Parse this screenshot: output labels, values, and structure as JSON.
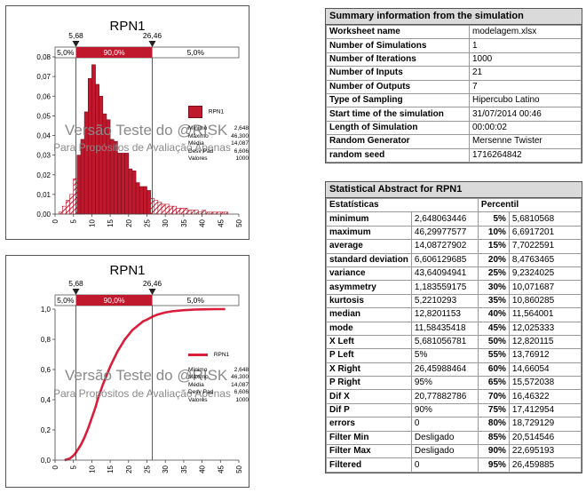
{
  "chart_data": [
    {
      "type": "bar",
      "title": "RPN1",
      "xlim": [
        0,
        50
      ],
      "ylim": [
        0,
        0.08
      ],
      "x_ticks": [
        "0",
        "5",
        "10",
        "15",
        "20",
        "25",
        "30",
        "35",
        "40",
        "45",
        "50"
      ],
      "y_ticks": [
        "0,00",
        "0,01",
        "0,02",
        "0,03",
        "0,04",
        "0,05",
        "0,06",
        "0,07",
        "0,08"
      ],
      "bin_width": 1.0,
      "bin_start": 1.0,
      "values": [
        0.001,
        0.004,
        0.007,
        0.01,
        0.018,
        0.03,
        0.038,
        0.052,
        0.069,
        0.076,
        0.066,
        0.06,
        0.051,
        0.048,
        0.038,
        0.037,
        0.031,
        0.031,
        0.031,
        0.023,
        0.022,
        0.016,
        0.014,
        0.014,
        0.012,
        0.008,
        0.007,
        0.006,
        0.005,
        0.005,
        0.004,
        0.004,
        0.003,
        0.003,
        0.003,
        0.002,
        0.002,
        0.002,
        0.001,
        0.002,
        0.001,
        0.001,
        0.001,
        0.001,
        0.001,
        0.001
      ],
      "markers": {
        "left": {
          "value": 5.68,
          "label": "5,68"
        },
        "right": {
          "value": 26.46,
          "label": "26,46"
        }
      },
      "band_labels": [
        "5,0%",
        "90,0%",
        "5,0%"
      ],
      "legend": "RPN1",
      "grid": false
    },
    {
      "type": "line",
      "title": "RPN1",
      "xlim": [
        0,
        50
      ],
      "ylim": [
        0,
        1.0
      ],
      "x_ticks": [
        "0",
        "5",
        "10",
        "15",
        "20",
        "25",
        "30",
        "35",
        "40",
        "45",
        "50"
      ],
      "y_ticks": [
        "0,0",
        "0,2",
        "0,4",
        "0,6",
        "0,8",
        "1,0"
      ],
      "x": [
        2.6,
        4,
        5,
        5.68,
        7,
        8,
        9,
        10,
        11,
        11.58,
        12,
        13,
        14,
        15,
        16,
        17,
        18,
        19,
        20,
        21,
        22,
        23,
        24,
        25,
        26.46,
        28,
        30,
        32,
        35,
        38,
        41,
        44,
        46.3
      ],
      "y": [
        0.0,
        0.01,
        0.03,
        0.05,
        0.1,
        0.15,
        0.21,
        0.28,
        0.35,
        0.4,
        0.43,
        0.5,
        0.56,
        0.62,
        0.67,
        0.72,
        0.76,
        0.8,
        0.83,
        0.86,
        0.88,
        0.9,
        0.92,
        0.93,
        0.95,
        0.965,
        0.978,
        0.986,
        0.993,
        0.997,
        0.999,
        1.0,
        1.0
      ],
      "markers": {
        "left": {
          "value": 5.68,
          "label": "5,68"
        },
        "right": {
          "value": 26.46,
          "label": "26,46"
        }
      },
      "band_labels": [
        "5,0%",
        "90,0%",
        "5,0%"
      ],
      "legend": "RPN1",
      "grid": false
    }
  ],
  "colors": {
    "bar": "#c0182c",
    "bar_edge": "#7a0f1c",
    "band": "#c0182c",
    "curve": "#d81e3a"
  },
  "stats_legend": [
    {
      "label": "Mínimo",
      "value": "2,648"
    },
    {
      "label": "Máximo",
      "value": "46,300"
    },
    {
      "label": "Média",
      "value": "14,087"
    },
    {
      "label": "Desv Pad",
      "value": "6,606"
    },
    {
      "label": "Valores",
      "value": "1000"
    }
  ],
  "watermark": {
    "line1": "Versão Teste do @RISK",
    "line2": "Para Propósitos de Avaliação Apenas"
  },
  "summary": {
    "title": "Summary information from the simulation",
    "rows": [
      {
        "label": "Worksheet name",
        "value": "modelagem.xlsx"
      },
      {
        "label": "Number of Simulations",
        "value": "1"
      },
      {
        "label": "Number of Iterations",
        "value": "1000"
      },
      {
        "label": "Number of Inputs",
        "value": "21"
      },
      {
        "label": "Number of Outputs",
        "value": "7"
      },
      {
        "label": "Type of Sampling",
        "value": "Hipercubo Latino"
      },
      {
        "label": "Start time of the simulation",
        "value": "31/07/2014 00:46"
      },
      {
        "label": "Length of Simulation",
        "value": "00:00:02"
      },
      {
        "label": "Random Generator",
        "value": "Mersenne Twister"
      },
      {
        "label": "random seed",
        "value": "1716264842"
      }
    ]
  },
  "abstract": {
    "title": "Statistical Abstract for RPN1",
    "col1": "Estatísticas",
    "col2": "Percentil",
    "rows": [
      {
        "stat": "minimum",
        "val": "2,648063446",
        "pct": "5%",
        "pval": "5,6810568"
      },
      {
        "stat": "maximum",
        "val": "46,29977577",
        "pct": "10%",
        "pval": "6,6917201"
      },
      {
        "stat": "average",
        "val": "14,08727902",
        "pct": "15%",
        "pval": "7,7022591"
      },
      {
        "stat": "standard deviation",
        "val": "6,606129685",
        "pct": "20%",
        "pval": "8,4763465"
      },
      {
        "stat": "variance",
        "val": "43,64094941",
        "pct": "25%",
        "pval": "9,2324025"
      },
      {
        "stat": "asymmetry",
        "val": "1,183559175",
        "pct": "30%",
        "pval": "10,071687"
      },
      {
        "stat": "kurtosis",
        "val": "5,2210293",
        "pct": "35%",
        "pval": "10,860285"
      },
      {
        "stat": "median",
        "val": "12,8201153",
        "pct": "40%",
        "pval": "11,564001"
      },
      {
        "stat": "mode",
        "val": "11,58435418",
        "pct": "45%",
        "pval": "12,025333"
      },
      {
        "stat": "X Left",
        "val": "5,681056781",
        "pct": "50%",
        "pval": "12,820115"
      },
      {
        "stat": "P Left",
        "val": "5%",
        "pct": "55%",
        "pval": "13,76912"
      },
      {
        "stat": "X Right",
        "val": "26,45988464",
        "pct": "60%",
        "pval": "14,66054"
      },
      {
        "stat": "P Right",
        "val": "95%",
        "pct": "65%",
        "pval": "15,572038"
      },
      {
        "stat": "Dif X",
        "val": "20,77882786",
        "pct": "70%",
        "pval": "16,46322"
      },
      {
        "stat": "Dif P",
        "val": "90%",
        "pct": "75%",
        "pval": "17,412954"
      },
      {
        "stat": "errors",
        "val": "0",
        "pct": "80%",
        "pval": "18,729129"
      },
      {
        "stat": "Filter Min",
        "val": "Desligado",
        "pct": "85%",
        "pval": "20,514546"
      },
      {
        "stat": "Filter Max",
        "val": "Desligado",
        "pct": "90%",
        "pval": "22,695193"
      },
      {
        "stat": "Filtered",
        "val": "0",
        "pct": "95%",
        "pval": "26,459885"
      }
    ]
  }
}
